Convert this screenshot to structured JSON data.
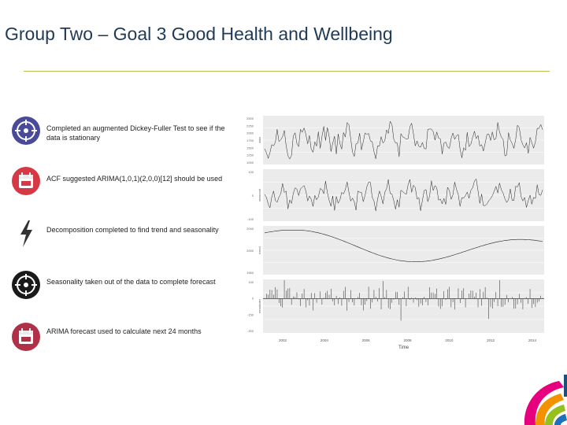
{
  "slide": {
    "title": "Group Two – Goal 3 Good Health and Wellbeing"
  },
  "steps": [
    {
      "text": "Completed an augmented Dickey-Fuller Test to see if the data is stationary",
      "icon": "crosshair-icon",
      "color": "#4a4a9a"
    },
    {
      "text": "ACF suggested ARIMA(1,0,1)(2,0,0)[12] should be used",
      "icon": "calendar-icon",
      "color": "#d63845"
    },
    {
      "text": "Decomposition completed to find  trend and seasonality",
      "icon": "lightning-icon",
      "color": "#333333"
    },
    {
      "text": "Seasonality taken out of the data to complete forecast",
      "icon": "crosshair-icon",
      "color": "#1a1a1a"
    },
    {
      "text": "ARIMA forecast used  to calculate next 24 months",
      "icon": "calendar-icon",
      "color": "#b03048"
    }
  ],
  "chart_data": {
    "type": "line",
    "xlabel": "Time",
    "x_ticks": [
      "2002",
      "2004",
      "2006",
      "2008",
      "2010",
      "2012",
      "2014"
    ],
    "panels": [
      {
        "ylabel": "data",
        "y_ticks": [
          "2500",
          "2250",
          "2000",
          "1750",
          "1500",
          "1250",
          "1000"
        ]
      },
      {
        "ylabel": "seasonal",
        "y_ticks": [
          "100",
          "0",
          "-100"
        ]
      },
      {
        "ylabel": "trend",
        "y_ticks": [
          "2040",
          "2000",
          "1960"
        ]
      },
      {
        "ylabel": "remainder",
        "y_ticks": [
          "150",
          "0",
          "-150",
          "-300"
        ]
      }
    ]
  }
}
